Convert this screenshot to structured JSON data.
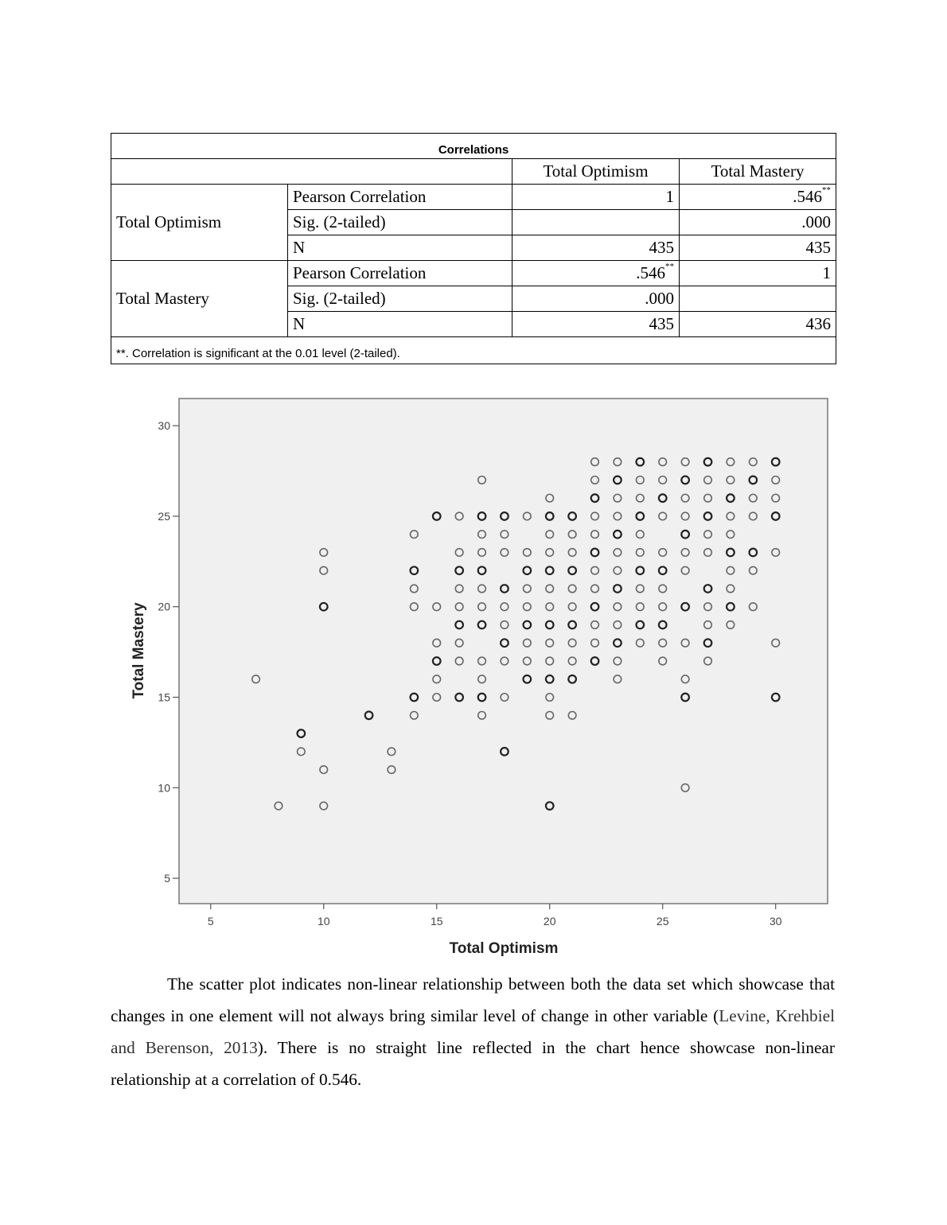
{
  "table": {
    "title": "Correlations",
    "headers": [
      "",
      "Total Optimism",
      "Total Mastery"
    ],
    "groups": [
      {
        "label": "Total Optimism",
        "rows": [
          {
            "stat": "Pearson Correlation",
            "optimism": "1",
            "mastery": ".546",
            "mastery_sup": "**"
          },
          {
            "stat": "Sig. (2-tailed)",
            "optimism": "",
            "mastery": ".000"
          },
          {
            "stat": "N",
            "optimism": "435",
            "mastery": "435"
          }
        ]
      },
      {
        "label": "Total Mastery",
        "rows": [
          {
            "stat": "Pearson Correlation",
            "optimism": ".546",
            "optimism_sup": "**",
            "mastery": "1"
          },
          {
            "stat": "Sig. (2-tailed)",
            "optimism": ".000",
            "mastery": ""
          },
          {
            "stat": "N",
            "optimism": "435",
            "mastery": "436"
          }
        ]
      }
    ],
    "footnote": "**. Correlation is significant at the 0.01 level (2-tailed)."
  },
  "chart_data": {
    "type": "scatter",
    "xlabel": "Total Optimism",
    "ylabel": "Total Mastery",
    "xlim": [
      3.6,
      32.3
    ],
    "ylim": [
      3.6,
      31.5
    ],
    "xticks": [
      5,
      10,
      15,
      20,
      25,
      30
    ],
    "yticks": [
      5,
      10,
      15,
      20,
      25,
      30
    ],
    "grid": false,
    "background": "#f0f0f0",
    "marker": "open-circle",
    "points_by_x": {
      "7": [
        16
      ],
      "8": [
        9
      ],
      "9": [
        13,
        12
      ],
      "10": [
        23,
        22,
        20,
        11,
        9
      ],
      "12": [
        14
      ],
      "13": [
        12,
        11
      ],
      "14": [
        24,
        22,
        21,
        20,
        15,
        14
      ],
      "15": [
        25,
        20,
        18,
        17,
        16,
        15
      ],
      "16": [
        25,
        23,
        22,
        21,
        20,
        19,
        18,
        17,
        15
      ],
      "17": [
        27,
        25,
        24,
        23,
        22,
        21,
        20,
        19,
        17,
        16,
        15,
        14
      ],
      "18": [
        25,
        24,
        23,
        21,
        20,
        19,
        18,
        17,
        15,
        12
      ],
      "19": [
        25,
        23,
        22,
        21,
        20,
        19,
        18,
        17,
        16
      ],
      "20": [
        26,
        25,
        24,
        23,
        22,
        21,
        20,
        19,
        18,
        17,
        16,
        15,
        14,
        9
      ],
      "21": [
        25,
        24,
        23,
        22,
        21,
        20,
        19,
        18,
        17,
        16,
        14
      ],
      "22": [
        28,
        27,
        26,
        25,
        24,
        23,
        22,
        21,
        20,
        19,
        18,
        17
      ],
      "23": [
        28,
        27,
        26,
        25,
        24,
        23,
        22,
        21,
        20,
        19,
        18,
        17,
        16
      ],
      "24": [
        28,
        27,
        26,
        25,
        24,
        23,
        22,
        21,
        20,
        19,
        18
      ],
      "25": [
        28,
        27,
        26,
        25,
        23,
        22,
        21,
        20,
        19,
        18,
        17
      ],
      "26": [
        28,
        27,
        26,
        25,
        24,
        23,
        22,
        20,
        18,
        16,
        15,
        10
      ],
      "27": [
        28,
        27,
        26,
        25,
        24,
        23,
        21,
        20,
        19,
        18,
        17
      ],
      "28": [
        28,
        27,
        26,
        25,
        24,
        23,
        22,
        21,
        20,
        19
      ],
      "29": [
        28,
        27,
        26,
        25,
        23,
        22,
        20
      ],
      "30": [
        28,
        27,
        26,
        25,
        23,
        18,
        15
      ]
    }
  },
  "paragraph": {
    "before": "The scatter plot indicates non-linear relationship between both the data set which showcase that changes in one element will not always bring similar level of change in other variable (",
    "citation": "Levine, Krehbiel and Berenson, 2013",
    "after": "). There is no straight line reflected in the chart hence showcase non-linear relationship at a correlation of 0.546."
  }
}
